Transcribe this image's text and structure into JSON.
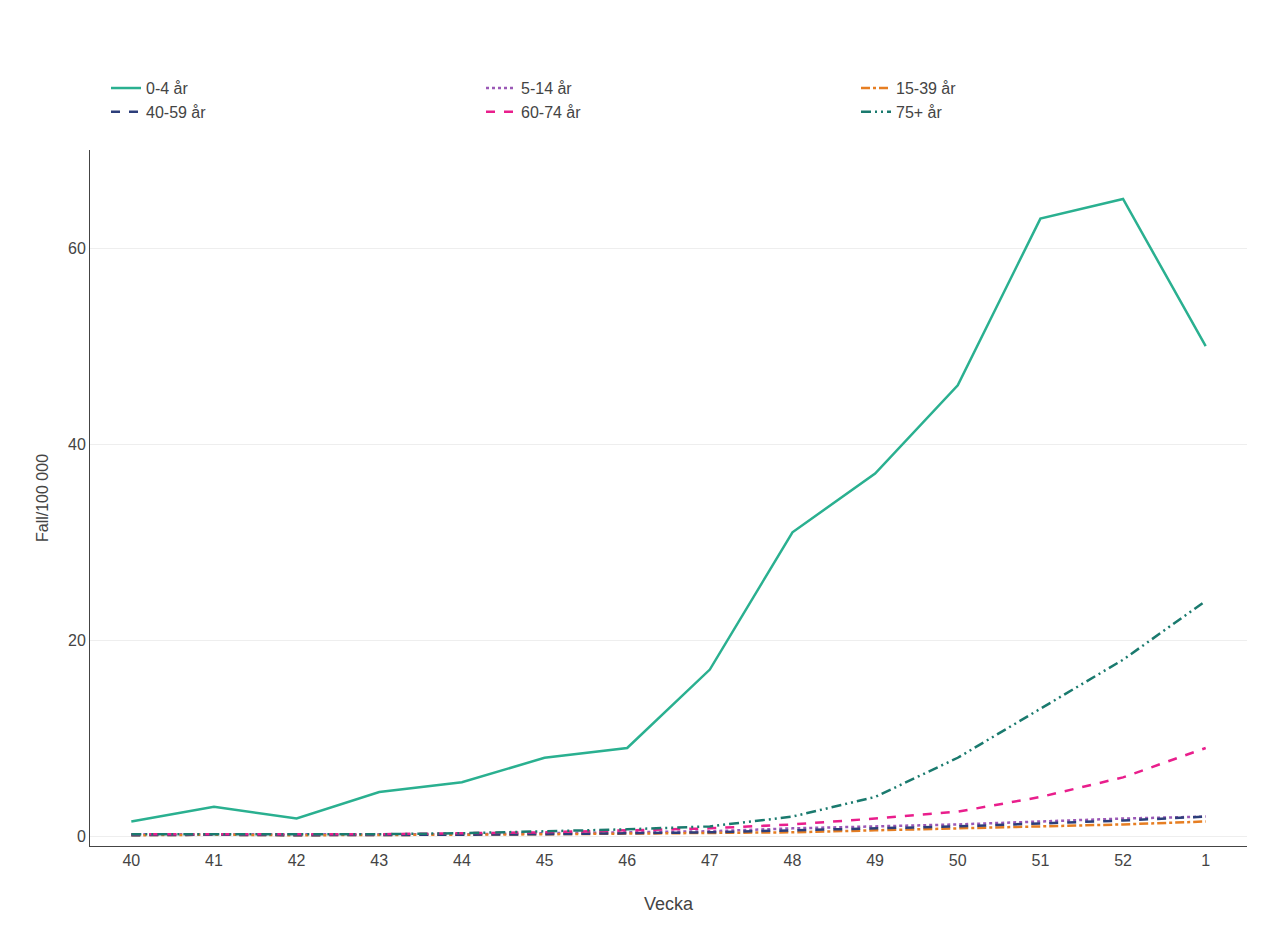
{
  "chart_data": {
    "type": "line",
    "xlabel": "Vecka",
    "ylabel": "Fall/100 000",
    "categories": [
      "40",
      "41",
      "42",
      "43",
      "44",
      "45",
      "46",
      "47",
      "48",
      "49",
      "50",
      "51",
      "52",
      "1"
    ],
    "series": [
      {
        "name": "0-4 år",
        "color": "#2ab090",
        "line_style": "solid",
        "values": [
          1.5,
          3.0,
          1.8,
          4.5,
          5.5,
          8.0,
          9.0,
          17.0,
          31.0,
          37.0,
          46.0,
          63.0,
          65.0,
          50.0
        ]
      },
      {
        "name": "5-14 år",
        "color": "#9b59b6",
        "line_style": "dotted",
        "values": [
          0.2,
          0.2,
          0.2,
          0.2,
          0.2,
          0.3,
          0.4,
          0.5,
          0.8,
          1.0,
          1.2,
          1.5,
          1.8,
          2.0
        ]
      },
      {
        "name": "15-39 år",
        "color": "#e67e22",
        "line_style": "dashdot",
        "values": [
          0.1,
          0.15,
          0.1,
          0.1,
          0.15,
          0.2,
          0.25,
          0.3,
          0.4,
          0.6,
          0.8,
          1.0,
          1.2,
          1.5
        ]
      },
      {
        "name": "40-59 år",
        "color": "#2c3e7a",
        "line_style": "dashed",
        "values": [
          0.1,
          0.15,
          0.1,
          0.1,
          0.15,
          0.2,
          0.3,
          0.4,
          0.6,
          0.8,
          1.0,
          1.3,
          1.6,
          2.0
        ]
      },
      {
        "name": "60-74 år",
        "color": "#e91e8c",
        "line_style": "dashed",
        "values": [
          0.2,
          0.2,
          0.2,
          0.2,
          0.3,
          0.4,
          0.6,
          0.8,
          1.2,
          1.8,
          2.5,
          4.0,
          6.0,
          9.0
        ]
      },
      {
        "name": "75+ år",
        "color": "#1a7a6e",
        "line_style": "dashdotdot",
        "values": [
          0.2,
          0.2,
          0.2,
          0.2,
          0.3,
          0.5,
          0.7,
          1.0,
          2.0,
          4.0,
          8.0,
          13.0,
          18.0,
          24.0
        ]
      }
    ],
    "ylim": [
      -1,
      70
    ],
    "yticks": [
      0,
      20,
      40,
      60
    ],
    "grid": true,
    "legend": "top"
  }
}
